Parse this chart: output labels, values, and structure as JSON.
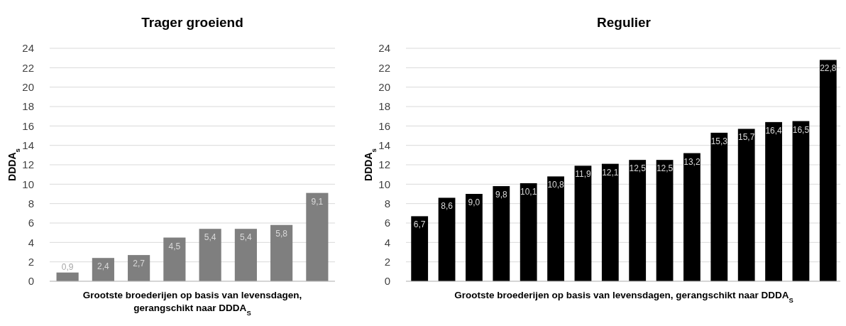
{
  "chart_data": [
    {
      "type": "bar",
      "title": "Trager groeiend",
      "xlabel": "Grootste broederijen op basis van levensdagen, gerangschikt naar DDDA$_{S}$",
      "ylabel": "DDDA$_{s}$",
      "categories": [
        null,
        null,
        null,
        null,
        null,
        null,
        null,
        null
      ],
      "values": [
        0.9,
        2.4,
        2.7,
        4.5,
        5.4,
        5.4,
        5.8,
        9.1
      ],
      "value_labels": [
        "0,9",
        "2,4",
        "2,7",
        "4,5",
        "5,4",
        "5,4",
        "5,8",
        "9,1"
      ],
      "color": "#7f7f7f",
      "ylim": [
        0,
        24
      ],
      "yticks": [
        0,
        2,
        4,
        6,
        8,
        10,
        12,
        14,
        16,
        18,
        20,
        22,
        24
      ],
      "grid": "y"
    },
    {
      "type": "bar",
      "title": "Regulier",
      "xlabel": "Grootste broederijen op basis van levensdagen, gerangschikt naar DDDA$_{S}$",
      "ylabel": "DDDA$_{s}$",
      "categories": [
        null,
        null,
        null,
        null,
        null,
        null,
        null,
        null,
        null,
        null,
        null,
        null,
        null,
        null,
        null,
        null
      ],
      "values": [
        6.7,
        8.6,
        9.0,
        9.8,
        10.1,
        10.8,
        11.9,
        12.1,
        12.5,
        12.5,
        13.2,
        15.3,
        15.7,
        16.4,
        16.5,
        22.8
      ],
      "value_labels": [
        "6,7",
        "8,6",
        "9,0",
        "9,8",
        "10,1",
        "10,8",
        "11,9",
        "12,1",
        "12,5",
        "12,5",
        "13,2",
        "15,3",
        "15,7",
        "16,4",
        "16,5",
        "22,8"
      ],
      "color": "#000000",
      "ylim": [
        0,
        24
      ],
      "yticks": [
        0,
        2,
        4,
        6,
        8,
        10,
        12,
        14,
        16,
        18,
        20,
        22,
        24
      ],
      "grid": "y"
    }
  ]
}
